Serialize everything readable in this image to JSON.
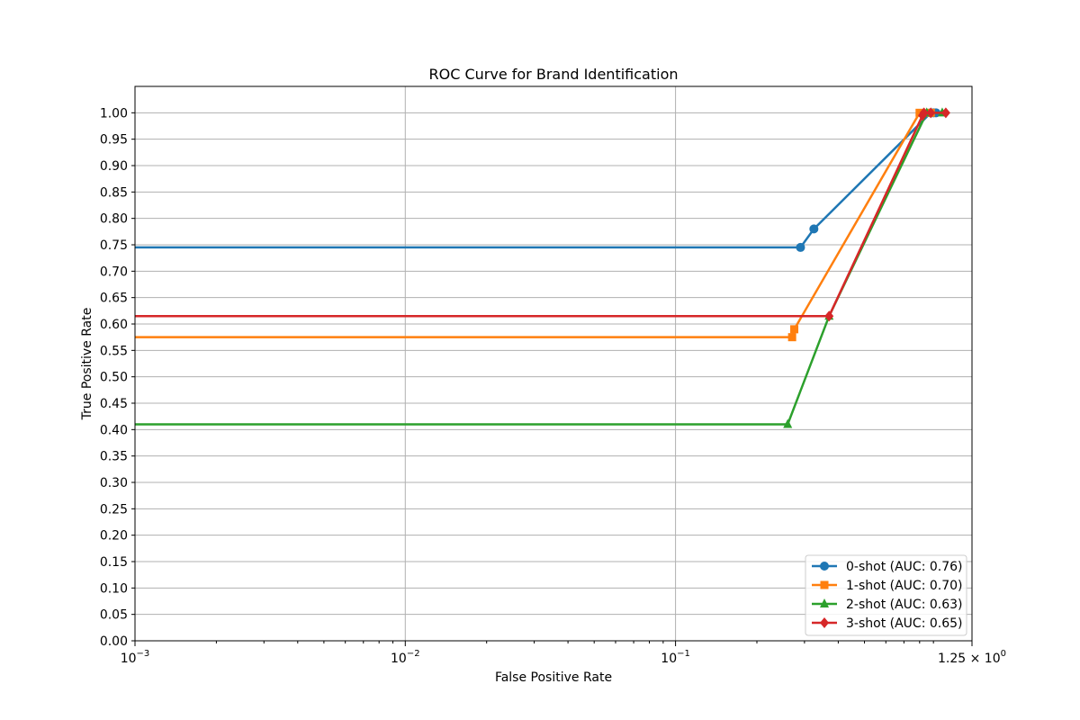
{
  "chart_data": {
    "type": "line",
    "title": "ROC Curve for Brand Identification",
    "xlabel": "False Positive Rate",
    "ylabel": "True Positive Rate",
    "xscale": "log",
    "xlim": [
      0.001,
      1.25
    ],
    "ylim": [
      0.0,
      1.05
    ],
    "grid": true,
    "legend_position": "lower-right",
    "x_ticks": [
      {
        "value": 0.001,
        "base": "10",
        "exp": "−3"
      },
      {
        "value": 0.01,
        "base": "10",
        "exp": "−2"
      },
      {
        "value": 0.1,
        "base": "10",
        "exp": "−1"
      },
      {
        "value": 1.25,
        "base": "1.25 × 10",
        "exp": "0"
      }
    ],
    "y_ticks": [
      "0.00",
      "0.05",
      "0.10",
      "0.15",
      "0.20",
      "0.25",
      "0.30",
      "0.35",
      "0.40",
      "0.45",
      "0.50",
      "0.55",
      "0.60",
      "0.65",
      "0.70",
      "0.75",
      "0.80",
      "0.85",
      "0.90",
      "0.95",
      "1.00"
    ],
    "series": [
      {
        "name": "0-shot (AUC: 0.76)",
        "color": "#1f77b4",
        "marker": "circle",
        "x": [
          0.0,
          0.29,
          0.325,
          0.88,
          0.9,
          0.92
        ],
        "y": [
          0.745,
          0.745,
          0.78,
          1.0,
          1.0,
          1.0
        ]
      },
      {
        "name": "1-shot (AUC: 0.70)",
        "color": "#ff7f0e",
        "marker": "square",
        "x": [
          0.0,
          0.27,
          0.275,
          0.8,
          0.88
        ],
        "y": [
          0.575,
          0.575,
          0.59,
          1.0,
          1.0
        ]
      },
      {
        "name": "2-shot (AUC: 0.63)",
        "color": "#2ca02c",
        "marker": "triangle",
        "x": [
          0.0,
          0.26,
          0.37,
          0.85,
          0.97
        ],
        "y": [
          0.41,
          0.41,
          0.615,
          1.0,
          1.0
        ]
      },
      {
        "name": "3-shot (AUC: 0.65)",
        "color": "#d62728",
        "marker": "diamond",
        "x": [
          0.0,
          0.37,
          0.82,
          0.83,
          0.88,
          1.0
        ],
        "y": [
          0.615,
          0.615,
          0.995,
          1.0,
          1.0,
          1.0
        ]
      }
    ]
  }
}
